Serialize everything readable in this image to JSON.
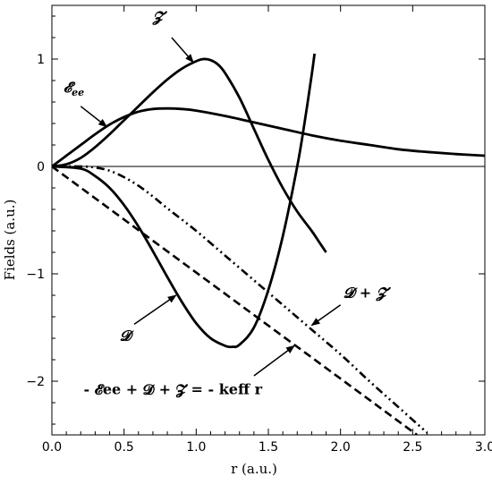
{
  "chart_data": {
    "type": "line",
    "title": "",
    "xlabel": "r (a.u.)",
    "ylabel": "Fields (a.u.)",
    "xlim": [
      0,
      3.0
    ],
    "ylim": [
      -2.5,
      1.5
    ],
    "x_ticks": [
      0.0,
      0.5,
      1.0,
      1.5,
      2.0,
      2.5,
      3.0
    ],
    "x_tick_labels": [
      "0.0",
      "0.5",
      "1.0",
      "1.5",
      "2.0",
      "2.5",
      "3.0"
    ],
    "y_ticks": [
      -2,
      -1,
      0,
      1
    ],
    "y_tick_labels": [
      "−2",
      "−1",
      "0",
      "1"
    ],
    "grid": false,
    "series": [
      {
        "name": "𝓔ee",
        "style": "solid",
        "x": [
          0,
          0.1,
          0.2,
          0.3,
          0.4,
          0.5,
          0.6,
          0.7,
          0.8,
          0.9,
          1.0,
          1.2,
          1.4,
          1.6,
          1.8,
          2.0,
          2.2,
          2.4,
          2.6,
          2.8,
          3.0
        ],
        "y": [
          0,
          0.1,
          0.2,
          0.3,
          0.39,
          0.46,
          0.51,
          0.535,
          0.54,
          0.535,
          0.52,
          0.47,
          0.41,
          0.35,
          0.29,
          0.24,
          0.2,
          0.16,
          0.135,
          0.115,
          0.1
        ]
      },
      {
        "name": "𝓩",
        "style": "solid",
        "x": [
          0,
          0.1,
          0.2,
          0.3,
          0.4,
          0.5,
          0.6,
          0.7,
          0.8,
          0.9,
          1.0,
          1.05,
          1.1,
          1.15,
          1.2,
          1.3,
          1.4,
          1.5,
          1.6,
          1.7,
          1.8,
          1.85,
          1.9
        ],
        "y": [
          0,
          0.02,
          0.08,
          0.18,
          0.3,
          0.43,
          0.56,
          0.69,
          0.81,
          0.91,
          0.98,
          1.0,
          0.99,
          0.95,
          0.87,
          0.64,
          0.35,
          0.06,
          -0.2,
          -0.42,
          -0.6,
          -0.7,
          -0.8
        ]
      },
      {
        "name": "𝓓",
        "style": "solid",
        "x": [
          0,
          0.2,
          0.3,
          0.4,
          0.5,
          0.6,
          0.7,
          0.8,
          0.9,
          1.0,
          1.1,
          1.2,
          1.25,
          1.3,
          1.4,
          1.5,
          1.6,
          1.7,
          1.75,
          1.8,
          1.82
        ],
        "y": [
          0,
          -0.02,
          -0.09,
          -0.2,
          -0.36,
          -0.56,
          -0.79,
          -1.03,
          -1.26,
          -1.46,
          -1.6,
          -1.67,
          -1.68,
          -1.66,
          -1.5,
          -1.15,
          -0.65,
          0.0,
          0.4,
          0.85,
          1.05
        ]
      },
      {
        "name": "𝓓 + 𝓩",
        "style": "dash-dot",
        "x": [
          0,
          0.2,
          0.3,
          0.4,
          0.5,
          0.6,
          0.7,
          0.8,
          1.0,
          1.2,
          1.4,
          1.6,
          1.8,
          2.0,
          2.2,
          2.4,
          2.6
        ],
        "y": [
          0,
          0,
          -0.01,
          -0.04,
          -0.1,
          -0.18,
          -0.28,
          -0.39,
          -0.6,
          -0.83,
          -1.06,
          -1.29,
          -1.52,
          -1.75,
          -2.0,
          -2.24,
          -2.48
        ]
      },
      {
        "name": "- 𝓔ee + 𝓓 + 𝓩 = - keff r",
        "style": "dashed",
        "x": [
          0,
          2.53
        ],
        "y": [
          0,
          -2.5
        ]
      }
    ],
    "annotations": [
      {
        "label": "𝓩",
        "tip": [
          0.98,
          0.97
        ],
        "tail": [
          0.83,
          1.2
        ],
        "text_at": [
          0.7,
          1.35
        ]
      },
      {
        "label": "𝓔",
        "sub": "ee",
        "tip": [
          0.38,
          0.37
        ],
        "tail": [
          0.2,
          0.56
        ],
        "text_at": [
          0.08,
          0.69
        ]
      },
      {
        "label": "𝓓",
        "tip": [
          0.86,
          -1.2
        ],
        "tail": [
          0.57,
          -1.47
        ],
        "text_at": [
          0.47,
          -1.62
        ]
      },
      {
        "label": "𝓓 + 𝓩",
        "tip": [
          1.8,
          -1.48
        ],
        "tail": [
          2.0,
          -1.29
        ],
        "text_at": [
          2.02,
          -1.22
        ]
      },
      {
        "label": "- 𝓔ee + 𝓓 + 𝓩 = - keff r",
        "tip": [
          1.68,
          -1.67
        ],
        "tail": [
          1.4,
          -1.95
        ],
        "text_at": [
          0.22,
          -2.12
        ]
      }
    ]
  }
}
